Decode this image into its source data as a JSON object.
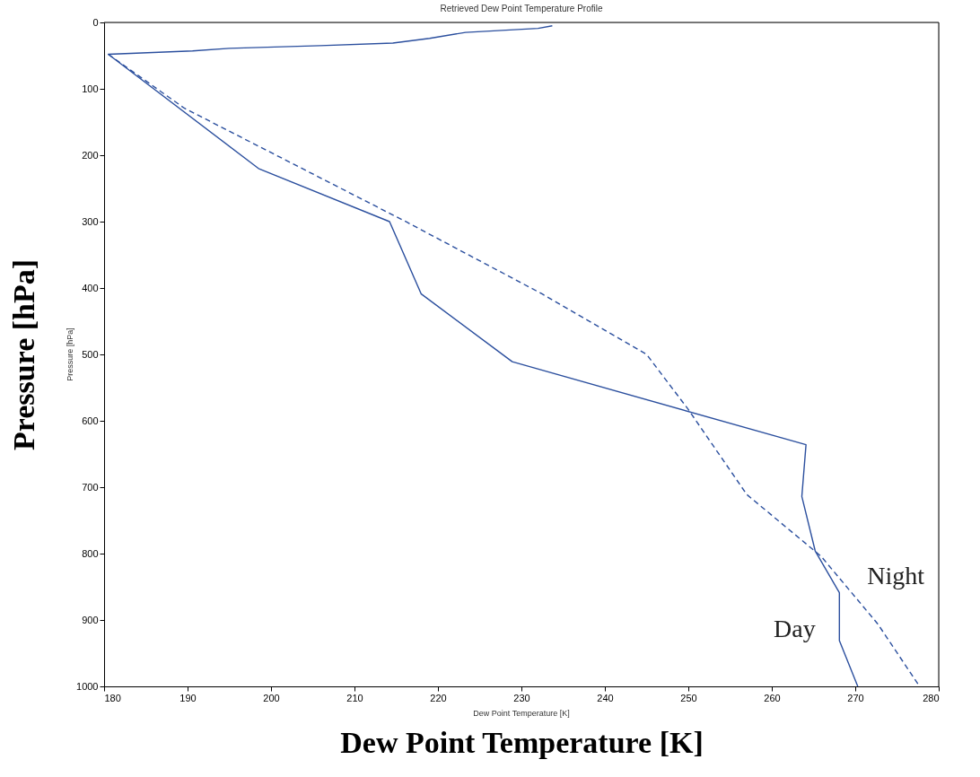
{
  "chart_data": {
    "type": "line",
    "title": "Retrieved Dew Point Temperature Profile",
    "xlabel": "Dew Point Temperature [K]",
    "ylabel": "Pressure [hPa]",
    "annotations": [
      "Dew Point Temperature [K]",
      "Pressure [hPa]"
    ],
    "xlim": [
      180,
      280
    ],
    "xticks": [
      180,
      190,
      200,
      210,
      220,
      230,
      240,
      250,
      260,
      270,
      280
    ],
    "ylim": [
      1000,
      0
    ],
    "yticks": [
      0,
      100,
      200,
      300,
      400,
      500,
      600,
      700,
      800,
      900,
      1000
    ],
    "grid": false,
    "marker": "none",
    "series": [
      {
        "name": "Day",
        "color": "#2b4f9e",
        "line_style": "solid",
        "x": [
          233.7,
          232,
          223.3,
          219,
          214.6,
          205.9,
          195,
          190.6,
          180.5,
          198.5,
          214.2,
          218,
          228.9,
          264.1,
          263.6,
          265.2,
          268.1,
          268.1,
          270.3
        ],
        "values": [
          5,
          9,
          15,
          24,
          31,
          35,
          39,
          43,
          48,
          220,
          300,
          409,
          511,
          636,
          714,
          796,
          859,
          931,
          1000
        ]
      },
      {
        "name": "Night",
        "color": "#2b4f9e",
        "line_style": "dashed",
        "x": [
          180.5,
          189.6,
          216.3,
          232.5,
          245,
          250,
          257,
          265.9,
          272.7,
          277.7
        ],
        "values": [
          48,
          129,
          301,
          409,
          500,
          583,
          711,
          804,
          906,
          1000
        ]
      }
    ]
  }
}
